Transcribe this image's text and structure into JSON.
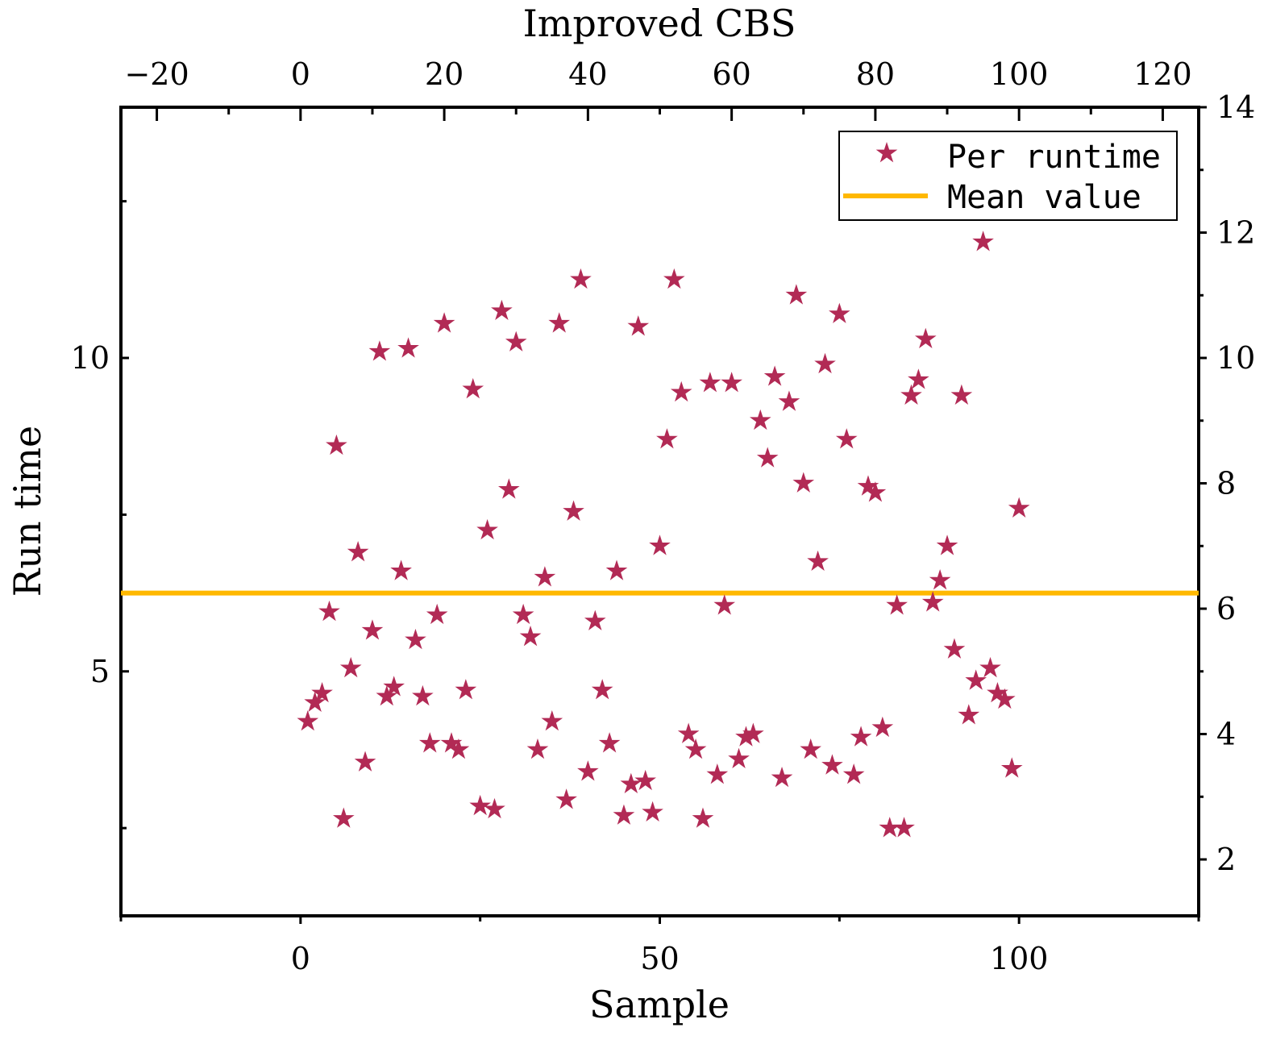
{
  "chart_data": {
    "type": "scatter",
    "title": "",
    "xlabel": "Sample",
    "ylabel": "Run time",
    "top_xlabel": "Improved CBS",
    "xlim": [
      -25,
      125
    ],
    "ylim": [
      1.1,
      14
    ],
    "bottom_xticks": [
      0,
      50,
      100
    ],
    "top_xticks": [
      -20,
      0,
      20,
      40,
      60,
      80,
      100,
      120
    ],
    "left_yticks": [
      5,
      10
    ],
    "right_yticks": [
      2,
      4,
      6,
      8,
      10,
      12,
      14
    ],
    "legend_position": "top-right",
    "series": [
      {
        "name": "Per runtime",
        "marker": "star",
        "color": "#b22a55",
        "x": [
          1,
          2,
          3,
          4,
          5,
          6,
          7,
          8,
          9,
          10,
          11,
          12,
          13,
          14,
          15,
          16,
          17,
          18,
          19,
          20,
          21,
          22,
          23,
          24,
          25,
          26,
          27,
          28,
          29,
          30,
          31,
          32,
          33,
          34,
          35,
          36,
          37,
          38,
          39,
          40,
          41,
          42,
          43,
          44,
          45,
          46,
          47,
          48,
          49,
          50,
          51,
          52,
          53,
          54,
          55,
          56,
          57,
          58,
          59,
          60,
          61,
          62,
          63,
          64,
          65,
          66,
          67,
          68,
          69,
          70,
          71,
          72,
          73,
          74,
          75,
          76,
          77,
          78,
          79,
          80,
          81,
          82,
          83,
          84,
          85,
          86,
          87,
          88,
          89,
          90,
          91,
          92,
          93,
          94,
          95,
          96,
          97,
          98,
          99,
          100
        ],
        "y": [
          4.2,
          4.5,
          4.65,
          5.95,
          8.6,
          2.65,
          5.05,
          6.9,
          3.55,
          5.65,
          10.1,
          4.6,
          4.75,
          6.6,
          10.15,
          5.5,
          4.6,
          3.85,
          5.9,
          10.55,
          3.85,
          3.75,
          4.7,
          9.5,
          2.85,
          7.25,
          2.8,
          10.75,
          7.9,
          10.25,
          5.9,
          5.55,
          3.75,
          6.5,
          4.2,
          10.55,
          2.95,
          7.55,
          11.25,
          3.4,
          5.8,
          4.7,
          3.85,
          6.6,
          2.7,
          3.2,
          10.5,
          3.25,
          2.75,
          7.0,
          8.7,
          11.25,
          9.45,
          4.0,
          3.75,
          2.65,
          9.6,
          3.35,
          6.05,
          9.6,
          3.6,
          3.95,
          4.0,
          9.0,
          8.4,
          9.7,
          3.3,
          9.3,
          11.0,
          8.0,
          3.75,
          6.75,
          9.9,
          3.5,
          10.7,
          8.7,
          3.35,
          3.95,
          7.95,
          7.85,
          4.1,
          2.5,
          6.05,
          2.5,
          9.4,
          9.65,
          10.3,
          6.1,
          6.45,
          7.0,
          5.35,
          9.4,
          4.3,
          4.85,
          11.85,
          5.05,
          4.65,
          4.55,
          3.45,
          7.6
        ]
      }
    ],
    "reference_lines": [
      {
        "name": "Mean value",
        "y": 6.25,
        "color": "#ffb800"
      }
    ]
  }
}
